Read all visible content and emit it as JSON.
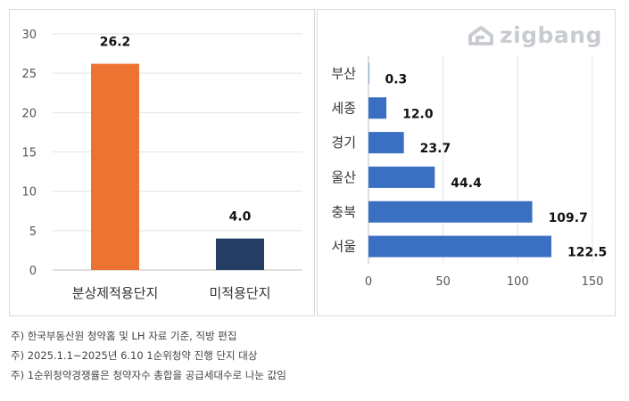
{
  "logo": {
    "text": "zigbang",
    "icon": "zigbang-house-icon"
  },
  "chart_data": [
    {
      "type": "bar",
      "orientation": "vertical",
      "categories": [
        "분상제적용단지",
        "미적용단지"
      ],
      "values": [
        26.2,
        4.0
      ],
      "value_labels": [
        "26.2",
        "4.0"
      ],
      "colors": [
        "#ED7332",
        "#243D63"
      ],
      "ylim": [
        0,
        30
      ],
      "yticks": [
        "0",
        "5",
        "10",
        "15",
        "20",
        "25",
        "30"
      ],
      "grid": true
    },
    {
      "type": "bar",
      "orientation": "horizontal",
      "categories": [
        "부산",
        "세종",
        "경기",
        "울산",
        "충북",
        "서울"
      ],
      "values": [
        0.3,
        12.0,
        23.7,
        44.4,
        109.7,
        122.5
      ],
      "value_labels": [
        "0.3",
        "12.0",
        "23.7",
        "44.4",
        "109.7",
        "122.5"
      ],
      "color": "#3B6FC2",
      "xlim": [
        0,
        150
      ],
      "xticks": [
        "0",
        "50",
        "100",
        "150"
      ],
      "grid": true
    }
  ],
  "notes": [
    "주) 한국부동산원 청약홈 및 LH 자료 기준, 직방 편집",
    "주) 2025.1.1~2025년 6.10 1순위청약 진행 단지 대상",
    "주) 1순위청약경쟁률은 청약자수 총합을 공급세대수로 나눈 값임"
  ]
}
